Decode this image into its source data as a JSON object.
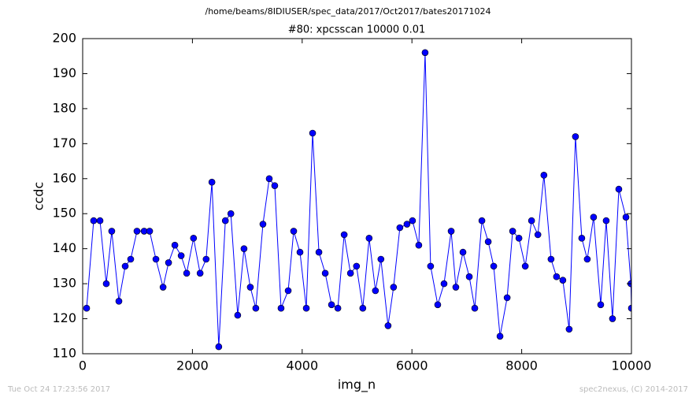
{
  "chart_data": {
    "type": "line",
    "suptitle": "/home/beams/8IDIUSER/spec_data/2017/Oct2017/bates20171024",
    "title": "#80: xpcsscan 10000 0.01",
    "xlabel": "img_n",
    "ylabel": "ccdc",
    "footer_left": "Tue Oct 24 17:23:56 2017",
    "footer_right": "spec2nexus, (C) 2014-2017",
    "x": [
      72,
      200,
      316,
      430,
      530,
      660,
      775,
      875,
      990,
      1120,
      1220,
      1335,
      1465,
      1565,
      1680,
      1795,
      1895,
      2020,
      2140,
      2250,
      2355,
      2480,
      2600,
      2700,
      2825,
      2940,
      3055,
      3155,
      3285,
      3400,
      3500,
      3615,
      3745,
      3845,
      3960,
      4075,
      4190,
      4305,
      4420,
      4535,
      4650,
      4765,
      4880,
      4990,
      5105,
      5220,
      5335,
      5435,
      5565,
      5665,
      5780,
      5910,
      6010,
      6125,
      6240,
      6340,
      6470,
      6585,
      6715,
      6800,
      6930,
      7045,
      7145,
      7275,
      7390,
      7490,
      7605,
      7735,
      7835,
      7950,
      8065,
      8180,
      8295,
      8405,
      8535,
      8635,
      8750,
      8865,
      8980,
      9095,
      9195,
      9310,
      9440,
      9540,
      9655,
      9770,
      9900,
      9990,
      10000
    ],
    "series": [
      {
        "name": "ccdc",
        "color": "#0000ff",
        "values": [
          123,
          148,
          148,
          130,
          145,
          125,
          135,
          137,
          145,
          145,
          145,
          137,
          129,
          136,
          141,
          138,
          133,
          143,
          133,
          137,
          159,
          112,
          148,
          150,
          121,
          140,
          129,
          123,
          147,
          160,
          158,
          123,
          128,
          145,
          139,
          123,
          173,
          139,
          133,
          124,
          123,
          144,
          133,
          135,
          123,
          143,
          128,
          137,
          118,
          129,
          146,
          147,
          148,
          141,
          196,
          135,
          124,
          130,
          145,
          129,
          139,
          132,
          123,
          148,
          142,
          135,
          115,
          126,
          145,
          143,
          135,
          148,
          144,
          161,
          137,
          132,
          131,
          117,
          172,
          143,
          137,
          149,
          124,
          148,
          120,
          157,
          149,
          130,
          123
        ]
      }
    ],
    "xlim": [
      0,
      10000
    ],
    "xticks": [
      0,
      2000,
      4000,
      6000,
      8000,
      10000
    ],
    "ylim": [
      110,
      200
    ],
    "yticks": [
      110,
      120,
      130,
      140,
      150,
      160,
      170,
      180,
      190,
      200
    ]
  }
}
